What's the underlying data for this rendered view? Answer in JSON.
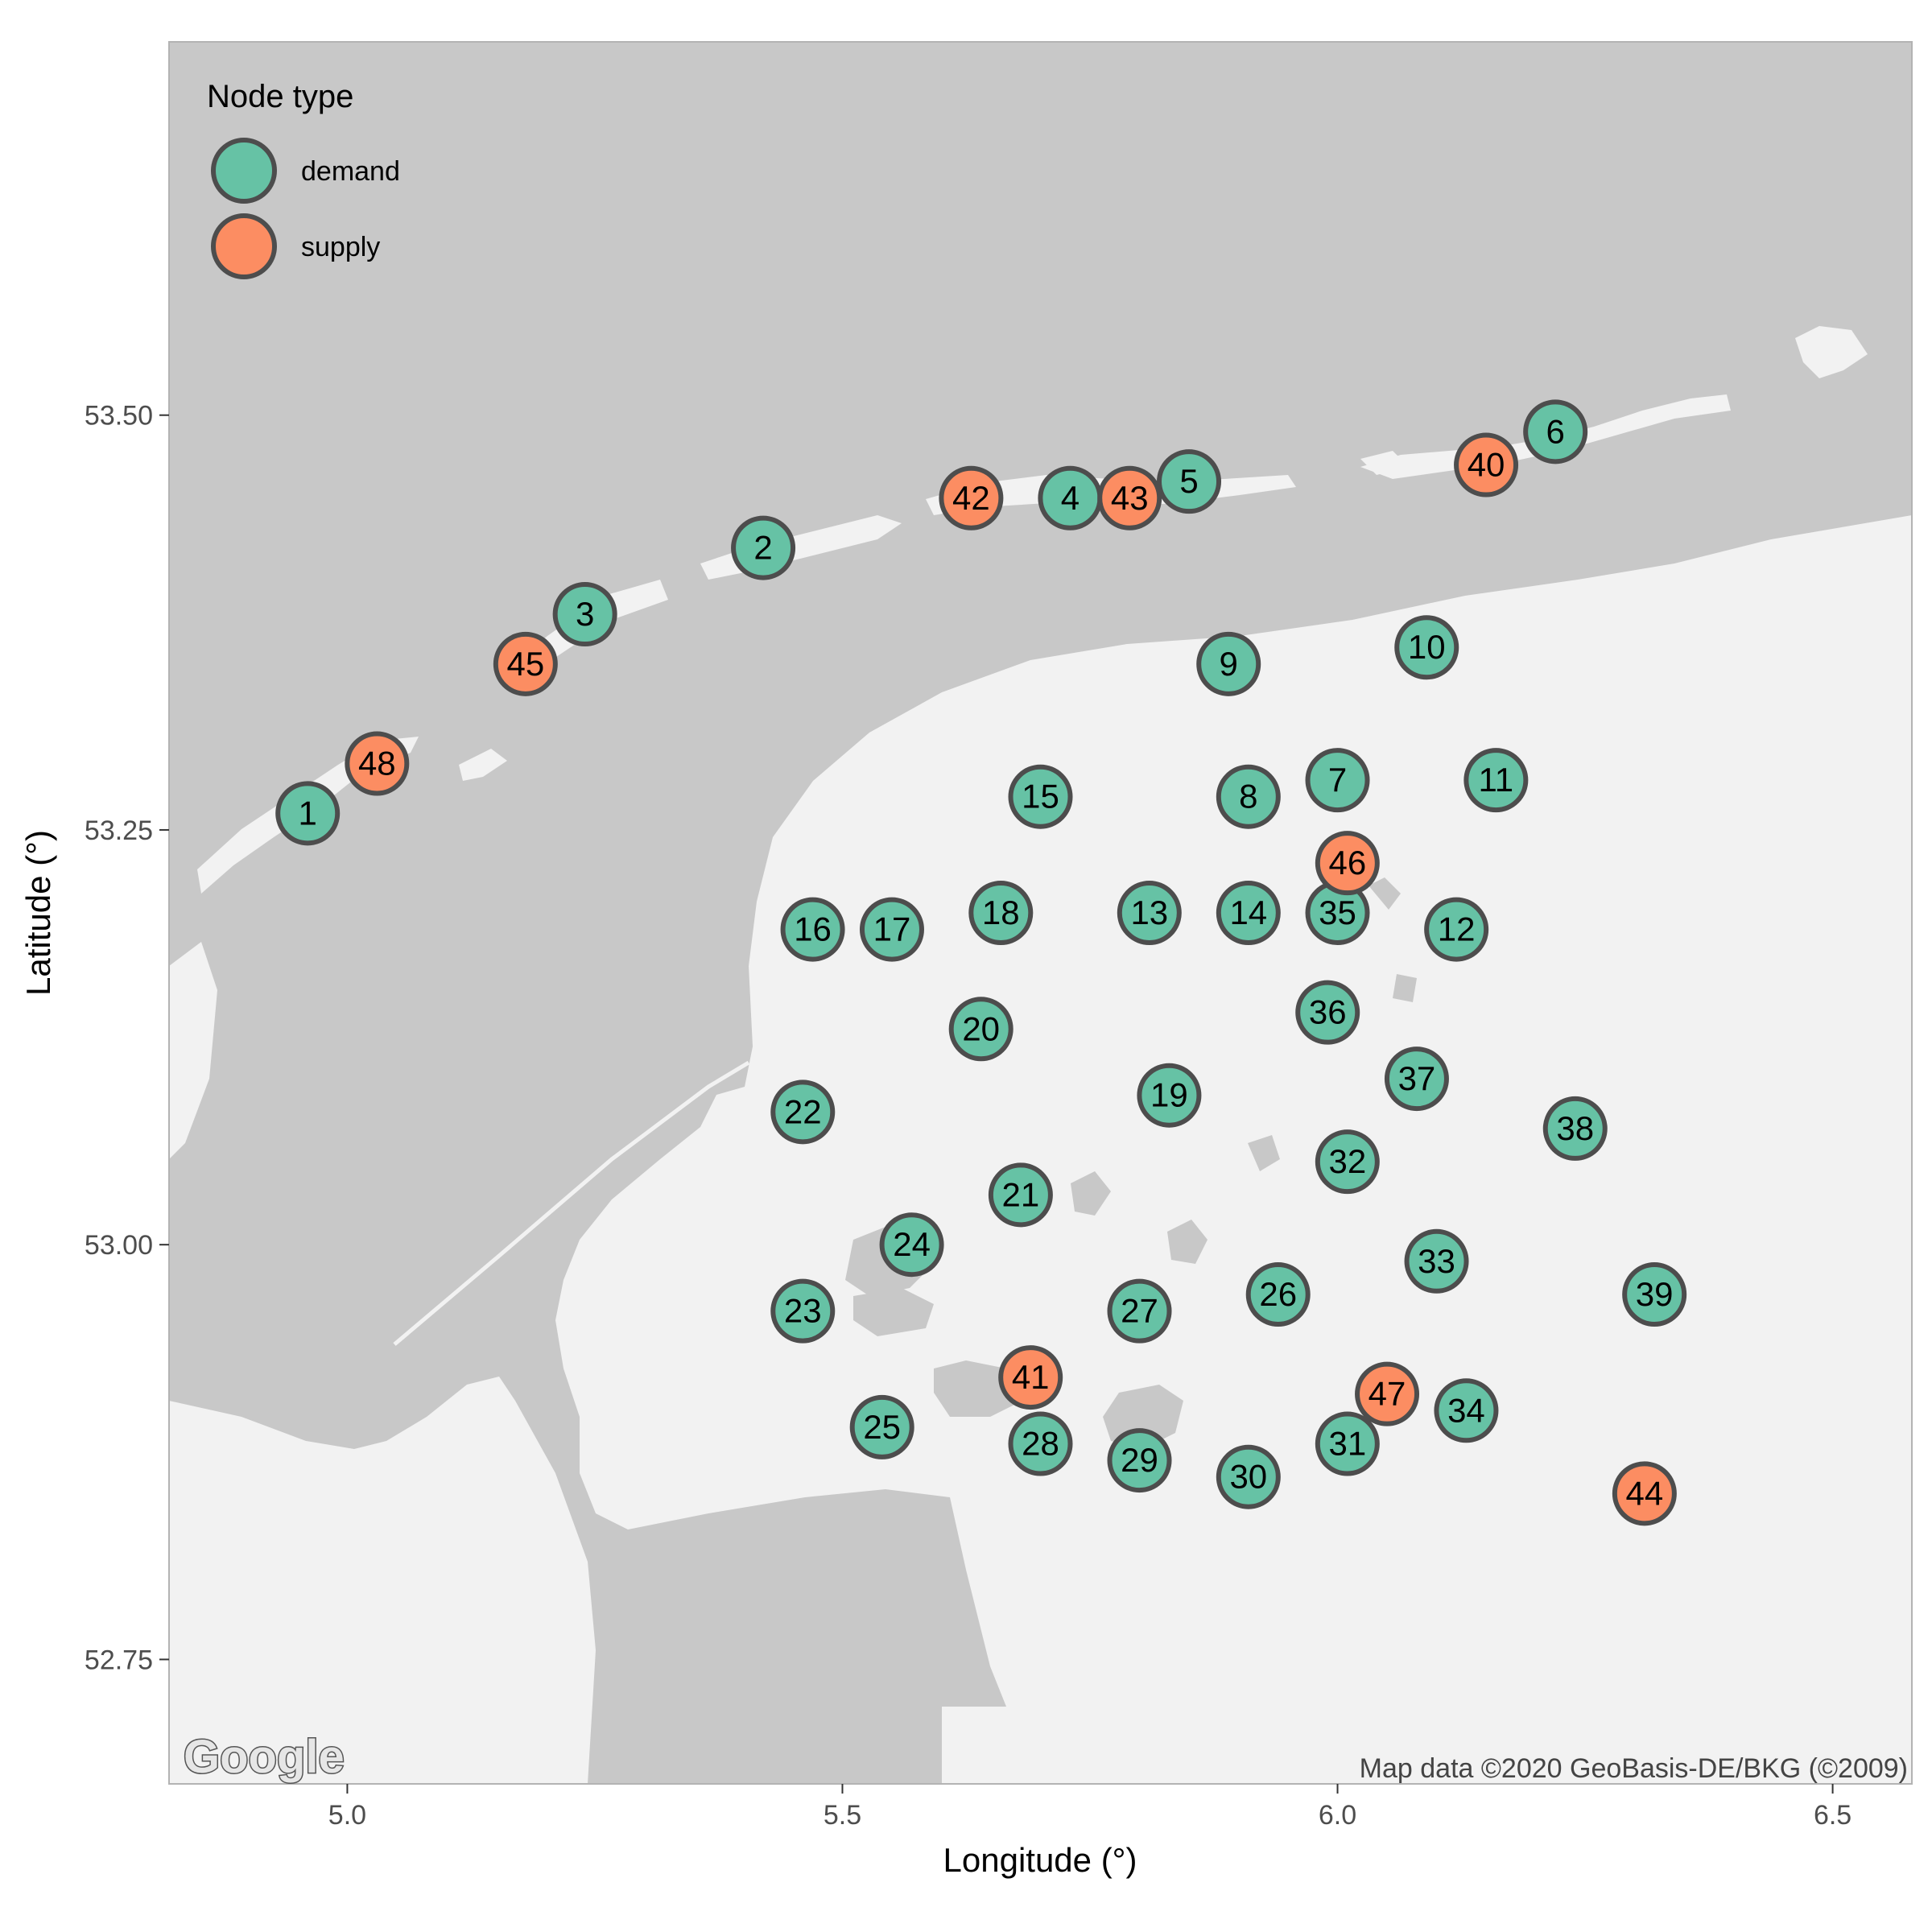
{
  "chart_data": {
    "type": "scatter",
    "title": "",
    "xlabel": "Longitude (°)",
    "ylabel": "Latitude (°)",
    "xlim": [
      4.82,
      6.58
    ],
    "ylim": [
      52.675,
      53.725
    ],
    "x_ticks": [
      5.0,
      5.5,
      6.0,
      6.5
    ],
    "x_tick_labels": [
      "5.0",
      "5.5",
      "6.0",
      "6.5"
    ],
    "y_ticks": [
      52.75,
      53.0,
      53.25,
      53.5
    ],
    "y_tick_labels": [
      "52.75",
      "53.00",
      "53.25",
      "53.50"
    ],
    "grid": false,
    "legend": {
      "title": "Node type",
      "placement": "top-left",
      "entries": [
        {
          "label": "demand",
          "color": "#66c2a5"
        },
        {
          "label": "supply",
          "color": "#fc8d62"
        }
      ]
    },
    "colors": {
      "demand": "#66c2a5",
      "supply": "#fc8d62",
      "marker_stroke": "#4d4d4d",
      "water": "#c8c8c8",
      "land": "#f2f2f2"
    },
    "points": [
      {
        "id": "1",
        "type": "demand",
        "lon": 4.96,
        "lat": 53.26
      },
      {
        "id": "2",
        "type": "demand",
        "lon": 5.42,
        "lat": 53.42
      },
      {
        "id": "3",
        "type": "demand",
        "lon": 5.24,
        "lat": 53.38
      },
      {
        "id": "4",
        "type": "demand",
        "lon": 5.73,
        "lat": 53.45
      },
      {
        "id": "5",
        "type": "demand",
        "lon": 5.85,
        "lat": 53.46
      },
      {
        "id": "6",
        "type": "demand",
        "lon": 6.22,
        "lat": 53.49
      },
      {
        "id": "7",
        "type": "demand",
        "lon": 6.0,
        "lat": 53.28
      },
      {
        "id": "8",
        "type": "demand",
        "lon": 5.91,
        "lat": 53.27
      },
      {
        "id": "9",
        "type": "demand",
        "lon": 5.89,
        "lat": 53.35
      },
      {
        "id": "10",
        "type": "demand",
        "lon": 6.09,
        "lat": 53.36
      },
      {
        "id": "11",
        "type": "demand",
        "lon": 6.16,
        "lat": 53.28
      },
      {
        "id": "12",
        "type": "demand",
        "lon": 6.12,
        "lat": 53.19
      },
      {
        "id": "13",
        "type": "demand",
        "lon": 5.81,
        "lat": 53.2
      },
      {
        "id": "14",
        "type": "demand",
        "lon": 5.91,
        "lat": 53.2
      },
      {
        "id": "15",
        "type": "demand",
        "lon": 5.7,
        "lat": 53.27
      },
      {
        "id": "16",
        "type": "demand",
        "lon": 5.47,
        "lat": 53.19
      },
      {
        "id": "17",
        "type": "demand",
        "lon": 5.55,
        "lat": 53.19
      },
      {
        "id": "18",
        "type": "demand",
        "lon": 5.66,
        "lat": 53.2
      },
      {
        "id": "19",
        "type": "demand",
        "lon": 5.83,
        "lat": 53.09
      },
      {
        "id": "20",
        "type": "demand",
        "lon": 5.64,
        "lat": 53.13
      },
      {
        "id": "21",
        "type": "demand",
        "lon": 5.68,
        "lat": 53.03
      },
      {
        "id": "22",
        "type": "demand",
        "lon": 5.46,
        "lat": 53.08
      },
      {
        "id": "23",
        "type": "demand",
        "lon": 5.46,
        "lat": 52.96
      },
      {
        "id": "24",
        "type": "demand",
        "lon": 5.57,
        "lat": 53.0
      },
      {
        "id": "25",
        "type": "demand",
        "lon": 5.54,
        "lat": 52.89
      },
      {
        "id": "26",
        "type": "demand",
        "lon": 5.94,
        "lat": 52.97
      },
      {
        "id": "27",
        "type": "demand",
        "lon": 5.8,
        "lat": 52.96
      },
      {
        "id": "28",
        "type": "demand",
        "lon": 5.7,
        "lat": 52.88
      },
      {
        "id": "29",
        "type": "demand",
        "lon": 5.8,
        "lat": 52.87
      },
      {
        "id": "30",
        "type": "demand",
        "lon": 5.91,
        "lat": 52.86
      },
      {
        "id": "31",
        "type": "demand",
        "lon": 6.01,
        "lat": 52.88
      },
      {
        "id": "32",
        "type": "demand",
        "lon": 6.01,
        "lat": 53.05
      },
      {
        "id": "33",
        "type": "demand",
        "lon": 6.1,
        "lat": 52.99
      },
      {
        "id": "34",
        "type": "demand",
        "lon": 6.13,
        "lat": 52.9
      },
      {
        "id": "35",
        "type": "demand",
        "lon": 6.0,
        "lat": 53.2
      },
      {
        "id": "36",
        "type": "demand",
        "lon": 5.99,
        "lat": 53.14
      },
      {
        "id": "37",
        "type": "demand",
        "lon": 6.08,
        "lat": 53.1
      },
      {
        "id": "38",
        "type": "demand",
        "lon": 6.24,
        "lat": 53.07
      },
      {
        "id": "39",
        "type": "demand",
        "lon": 6.32,
        "lat": 52.97
      },
      {
        "id": "40",
        "type": "supply",
        "lon": 6.15,
        "lat": 53.47
      },
      {
        "id": "41",
        "type": "supply",
        "lon": 5.69,
        "lat": 52.92
      },
      {
        "id": "42",
        "type": "supply",
        "lon": 5.63,
        "lat": 53.45
      },
      {
        "id": "43",
        "type": "supply",
        "lon": 5.79,
        "lat": 53.45
      },
      {
        "id": "44",
        "type": "supply",
        "lon": 6.31,
        "lat": 52.85
      },
      {
        "id": "45",
        "type": "supply",
        "lon": 5.18,
        "lat": 53.35
      },
      {
        "id": "46",
        "type": "supply",
        "lon": 6.01,
        "lat": 53.23
      },
      {
        "id": "47",
        "type": "supply",
        "lon": 6.05,
        "lat": 52.91
      },
      {
        "id": "48",
        "type": "supply",
        "lon": 5.03,
        "lat": 53.29
      }
    ]
  },
  "map": {
    "logo_text": "Google",
    "attribution": "Map data ©2020 GeoBasis-DE/BKG (©2009)"
  }
}
